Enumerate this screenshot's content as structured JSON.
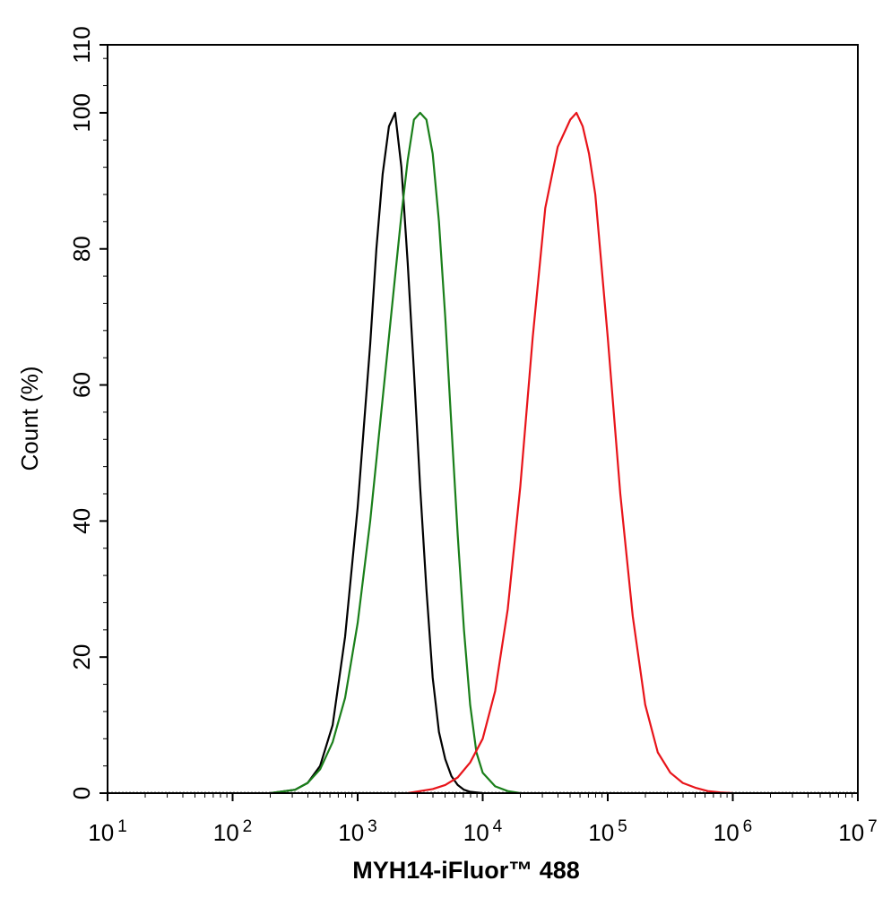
{
  "chart_data": {
    "type": "line",
    "title": "",
    "xlabel": "MYH14-iFluor™ 488",
    "ylabel": "Count  (%)",
    "x_scale": "log",
    "xlim": [
      10,
      10000000
    ],
    "ylim": [
      0,
      110
    ],
    "x_ticks": [
      {
        "value": 10,
        "base": "10",
        "exp": "1"
      },
      {
        "value": 100,
        "base": "10",
        "exp": "2"
      },
      {
        "value": 1000,
        "base": "10",
        "exp": "3"
      },
      {
        "value": 10000,
        "base": "10",
        "exp": "4"
      },
      {
        "value": 100000,
        "base": "10",
        "exp": "5"
      },
      {
        "value": 1000000,
        "base": "10",
        "exp": "6"
      },
      {
        "value": 10000000,
        "base": "10",
        "exp": "7"
      }
    ],
    "y_ticks": [
      "0",
      "20",
      "40",
      "60",
      "80",
      "100",
      "110"
    ],
    "y_tick_values": [
      0,
      20,
      40,
      60,
      80,
      100,
      110
    ],
    "grid": false,
    "legend": "none",
    "series": [
      {
        "color": "#000000",
        "x": [
          200,
          316,
          398,
          501,
          631,
          794,
          1000,
          1259,
          1413,
          1585,
          1778,
          1995,
          2239,
          2512,
          2818,
          3162,
          3548,
          3981,
          4467,
          5012,
          5623,
          6310,
          7079,
          7943,
          10000
        ],
        "y": [
          0,
          0.5,
          1.5,
          4,
          10,
          23,
          42,
          66,
          80,
          91,
          98,
          100,
          92,
          78,
          62,
          45,
          30,
          17,
          9,
          5,
          2.5,
          1.2,
          0.5,
          0.2,
          0
        ]
      },
      {
        "color": "#1a7f1a",
        "x": [
          200,
          316,
          398,
          501,
          631,
          794,
          1000,
          1259,
          1585,
          1995,
          2239,
          2512,
          2818,
          3162,
          3548,
          3981,
          4467,
          5012,
          5623,
          6310,
          7079,
          7943,
          8913,
          10000,
          12589,
          15849,
          20000
        ],
        "y": [
          0,
          0.5,
          1.5,
          3.5,
          7.5,
          14,
          25,
          40,
          58,
          76,
          85,
          93,
          99,
          100,
          99,
          94,
          84,
          70,
          54,
          38,
          24,
          13,
          6,
          3,
          1,
          0.3,
          0
        ]
      },
      {
        "color": "#e8141a",
        "x": [
          2512,
          3162,
          3981,
          5012,
          6310,
          7943,
          10000,
          12589,
          15849,
          19953,
          25119,
          31623,
          39811,
          50119,
          56234,
          63096,
          70795,
          79433,
          100000,
          125893,
          158489,
          199526,
          251189,
          316228,
          398107,
          501187,
          630957,
          794328,
          1000000
        ],
        "y": [
          0,
          0.3,
          0.6,
          1.2,
          2.3,
          4.5,
          8,
          15,
          27,
          45,
          67,
          86,
          95,
          99,
          100,
          98,
          94,
          88,
          67,
          44,
          26,
          13,
          6,
          3,
          1.5,
          0.8,
          0.3,
          0.1,
          0
        ]
      }
    ]
  }
}
